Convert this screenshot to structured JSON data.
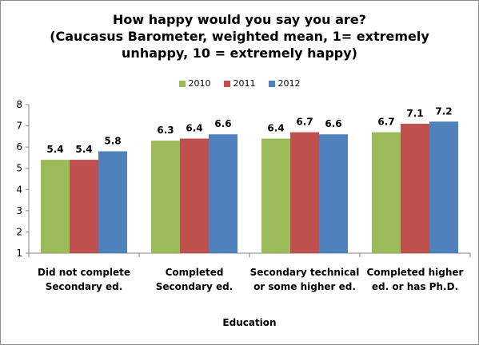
{
  "chart_data": {
    "type": "bar",
    "title_lines": [
      "How happy would you say you are?",
      "(Caucasus Barometer, weighted mean, 1= extremely",
      "unhappy, 10 = extremely happy)"
    ],
    "xlabel": "Education",
    "ylabel": "",
    "ylim": [
      1,
      8
    ],
    "yticks": [
      1,
      2,
      3,
      4,
      5,
      6,
      7,
      8
    ],
    "grid": false,
    "legend_position": "top",
    "categories": [
      [
        "Did not complete",
        "Secondary ed."
      ],
      [
        "Completed",
        "Secondary ed."
      ],
      [
        "Secondary technical",
        "or some higher ed."
      ],
      [
        "Completed higher",
        "ed. or has Ph.D."
      ]
    ],
    "series": [
      {
        "name": "2010",
        "color": "#9bbb59",
        "values": [
          5.4,
          6.3,
          6.4,
          6.7
        ]
      },
      {
        "name": "2011",
        "color": "#c0504d",
        "values": [
          5.4,
          6.4,
          6.7,
          7.1
        ]
      },
      {
        "name": "2012",
        "color": "#4f81bd",
        "values": [
          5.8,
          6.6,
          6.6,
          7.2
        ]
      }
    ]
  }
}
